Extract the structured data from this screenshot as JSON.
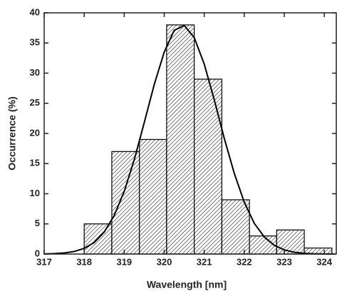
{
  "chart_data": {
    "type": "histogram",
    "xlabel": "Wavelength [nm]",
    "ylabel": "Occurrence (%)",
    "bins": [
      318.0,
      318.69,
      319.38,
      320.06,
      320.75,
      321.44,
      322.13,
      322.81,
      323.5,
      324.19
    ],
    "values": [
      5,
      17,
      19,
      38,
      29,
      9,
      3,
      4,
      1
    ],
    "color": "#000000",
    "fit": {
      "color": "#000000",
      "x": [
        317,
        317.25,
        317.5,
        317.75,
        318,
        318.25,
        318.5,
        318.75,
        319,
        319.25,
        319.5,
        319.75,
        320,
        320.25,
        320.5,
        320.75,
        321,
        321.25,
        321.5,
        321.75,
        322,
        322.25,
        322.5,
        322.75,
        323,
        323.25,
        323.5,
        323.75,
        324,
        324.25
      ],
      "values": [
        0.02,
        0.07,
        0.18,
        0.42,
        0.94,
        1.91,
        3.64,
        6.39,
        10.38,
        15.62,
        21.77,
        28.1,
        33.5,
        37.1,
        37.9,
        35.9,
        31.5,
        25.6,
        19.2,
        13.4,
        8.6,
        5.1,
        2.84,
        1.45,
        0.69,
        0.3,
        0.12,
        0.05,
        0.02,
        0.01
      ]
    },
    "xlim": [
      317,
      324.3
    ],
    "ylim": [
      0,
      40
    ],
    "xticks": [
      317,
      318,
      319,
      320,
      321,
      322,
      323,
      324
    ],
    "yticks": [
      0,
      5,
      10,
      15,
      20,
      25,
      30,
      35,
      40
    ]
  }
}
